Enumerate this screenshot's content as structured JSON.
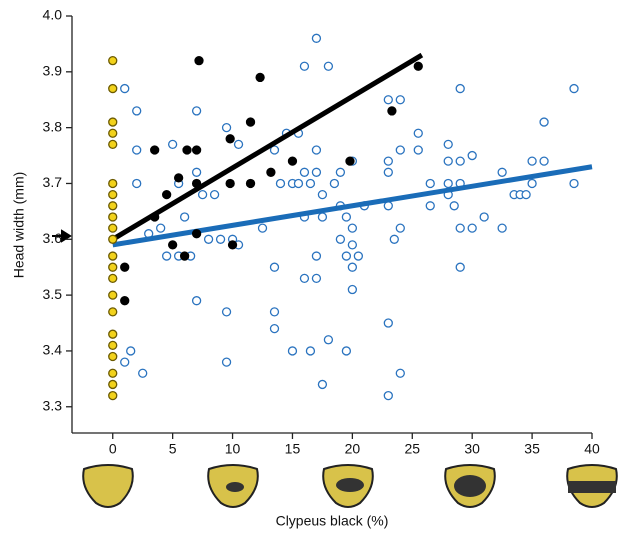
{
  "chart_data": {
    "type": "scatter",
    "xlabel": "Clypeus black (%)",
    "ylabel": "Head width (mm)",
    "xlim": [
      -3.4,
      40
    ],
    "ylim": [
      3.253,
      4.0
    ],
    "xticks": [
      0,
      5,
      10,
      15,
      20,
      25,
      30,
      35,
      40
    ],
    "yticks": [
      3.3,
      3.4,
      3.5,
      3.6,
      3.7,
      3.8,
      3.9,
      {
        "value": 4,
        "label": "4.0"
      }
    ],
    "series": [
      {
        "color": "#2a73bf",
        "filled": false,
        "x": [
          1,
          1,
          1.5,
          2,
          2,
          2,
          2.5,
          3,
          4,
          4.5,
          5,
          5.5,
          5.5,
          6,
          6.5,
          7,
          7,
          7,
          7.5,
          8,
          8.5,
          9,
          9.5,
          9.5,
          9.5,
          10,
          10.5,
          10.5,
          12.5,
          13.5,
          13.5,
          13.5,
          13.5,
          14,
          14.5,
          15,
          15,
          15.5,
          15.5,
          16,
          16,
          16,
          16,
          16.5,
          16.5,
          17,
          17,
          17,
          17,
          17,
          17.5,
          17.5,
          17.5,
          18,
          18,
          18.5,
          19,
          19,
          19,
          19.5,
          19.5,
          19.5,
          20,
          20,
          20,
          20,
          20,
          20.5,
          21,
          23,
          23,
          23,
          23,
          23,
          23,
          23.5,
          24,
          24,
          24,
          24,
          25.5,
          25.5,
          26.5,
          26.5,
          28,
          28,
          28,
          28,
          28.5,
          29,
          29,
          29,
          29,
          29,
          30,
          30,
          31,
          32.5,
          32.5,
          33.5,
          34,
          34.5,
          35,
          35,
          36,
          36,
          38.5,
          38.5
        ],
        "values": [
          3.87,
          3.38,
          3.4,
          3.83,
          3.76,
          3.7,
          3.36,
          3.61,
          3.62,
          3.57,
          3.77,
          3.7,
          3.57,
          3.64,
          3.57,
          3.83,
          3.72,
          3.49,
          3.68,
          3.6,
          3.68,
          3.6,
          3.8,
          3.47,
          3.38,
          3.6,
          3.59,
          3.77,
          3.62,
          3.76,
          3.55,
          3.47,
          3.44,
          3.7,
          3.79,
          3.7,
          3.4,
          3.79,
          3.7,
          3.91,
          3.72,
          3.64,
          3.53,
          3.7,
          3.4,
          3.96,
          3.76,
          3.72,
          3.57,
          3.53,
          3.68,
          3.64,
          3.34,
          3.91,
          3.42,
          3.7,
          3.72,
          3.66,
          3.6,
          3.64,
          3.57,
          3.4,
          3.62,
          3.59,
          3.55,
          3.51,
          3.74,
          3.57,
          3.66,
          3.85,
          3.74,
          3.72,
          3.66,
          3.45,
          3.32,
          3.6,
          3.85,
          3.76,
          3.62,
          3.36,
          3.79,
          3.76,
          3.7,
          3.66,
          3.77,
          3.74,
          3.7,
          3.68,
          3.66,
          3.87,
          3.74,
          3.7,
          3.62,
          3.55,
          3.75,
          3.62,
          3.64,
          3.72,
          3.62,
          3.68,
          3.68,
          3.68,
          3.7,
          3.74,
          3.74,
          3.81,
          3.87,
          3.7
        ]
      },
      {
        "color": "#000000",
        "filled": true,
        "x": [
          1,
          1,
          3.5,
          3.5,
          4.5,
          5,
          5.5,
          6,
          6.2,
          7,
          7,
          7,
          7.2,
          9.8,
          9.8,
          10,
          11.5,
          11.5,
          12.3,
          13.2,
          15,
          19.8,
          23.3,
          25.5
        ],
        "values": [
          3.55,
          3.49,
          3.76,
          3.64,
          3.68,
          3.59,
          3.71,
          3.57,
          3.76,
          3.76,
          3.7,
          3.61,
          3.92,
          3.78,
          3.7,
          3.59,
          3.81,
          3.7,
          3.89,
          3.72,
          3.74,
          3.74,
          3.83,
          3.91
        ]
      },
      {
        "color": "#f2d21b",
        "filled": true,
        "x": [
          0,
          0,
          0,
          0,
          0,
          0,
          0,
          0,
          0,
          0,
          0,
          0,
          0,
          0,
          0,
          0,
          0,
          0,
          0,
          0,
          0,
          0
        ],
        "values": [
          3.92,
          3.87,
          3.81,
          3.79,
          3.77,
          3.7,
          3.68,
          3.66,
          3.64,
          3.62,
          3.6,
          3.57,
          3.55,
          3.53,
          3.5,
          3.47,
          3.43,
          3.41,
          3.39,
          3.36,
          3.34,
          3.32
        ]
      }
    ],
    "fit_lines": [
      {
        "color": "#000000",
        "x": [
          0,
          25.8
        ],
        "values": [
          3.6,
          3.93
        ]
      },
      {
        "color": "#1a6cb8",
        "x": [
          0,
          40
        ],
        "values": [
          3.59,
          3.73
        ]
      }
    ]
  }
}
